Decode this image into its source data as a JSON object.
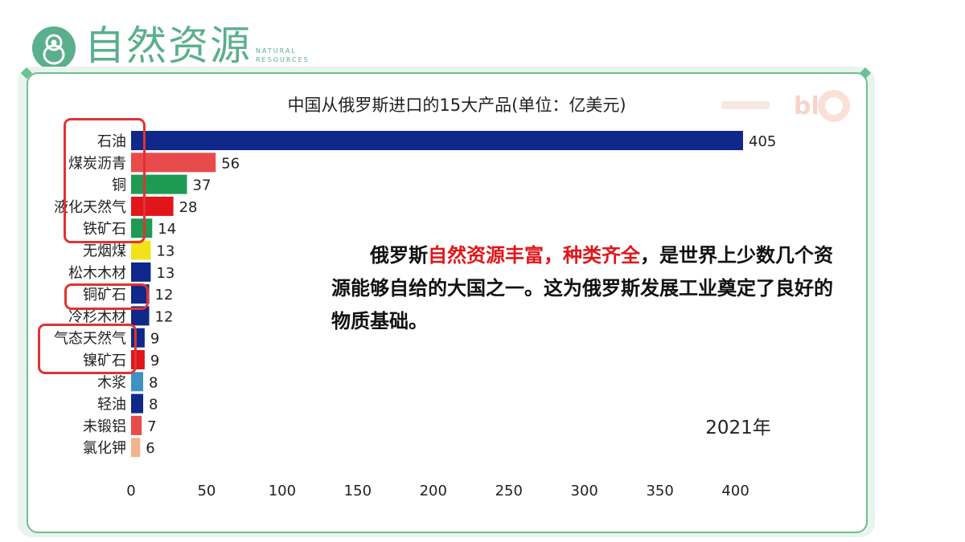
{
  "header": {
    "title": "自然资源",
    "subtitle": "NATURAL RESOURCES",
    "icon": "matryoshka-icon",
    "accent": "#5aaf8c"
  },
  "chart_data": {
    "type": "bar",
    "orientation": "horizontal",
    "title": "中国从俄罗斯进口的15大产品(单位：亿美元)",
    "categories": [
      "石油",
      "煤炭沥青",
      "铜",
      "液化天然气",
      "铁矿石",
      "无烟煤",
      "松木木材",
      "铜矿石",
      "冷杉木材",
      "气态天然气",
      "镍矿石",
      "木浆",
      "轻油",
      "未锻铝",
      "氯化钾"
    ],
    "values": [
      405,
      56,
      37,
      28,
      14,
      13,
      13,
      12,
      12,
      9,
      9,
      8,
      8,
      7,
      6
    ],
    "colors": [
      "#10288a",
      "#e84b4b",
      "#1e9a52",
      "#e0161a",
      "#1e9a52",
      "#f2e21a",
      "#10288a",
      "#10288a",
      "#10288a",
      "#10288a",
      "#e0161a",
      "#3d92c4",
      "#10288a",
      "#e84b4b",
      "#f2b48c"
    ],
    "xticks": [
      0,
      50,
      100,
      150,
      200,
      250,
      300,
      350,
      400
    ],
    "xlim": [
      0,
      410
    ],
    "annotation": "2021年",
    "grid": false,
    "legend": "none"
  },
  "callout": {
    "part1": "俄罗斯",
    "highlight": "自然资源丰富，种类齐全",
    "part2": "，是世界上少数几个资源能够自给的大国之一。这为俄罗斯发展工业奠定了良好的物质基础。"
  }
}
